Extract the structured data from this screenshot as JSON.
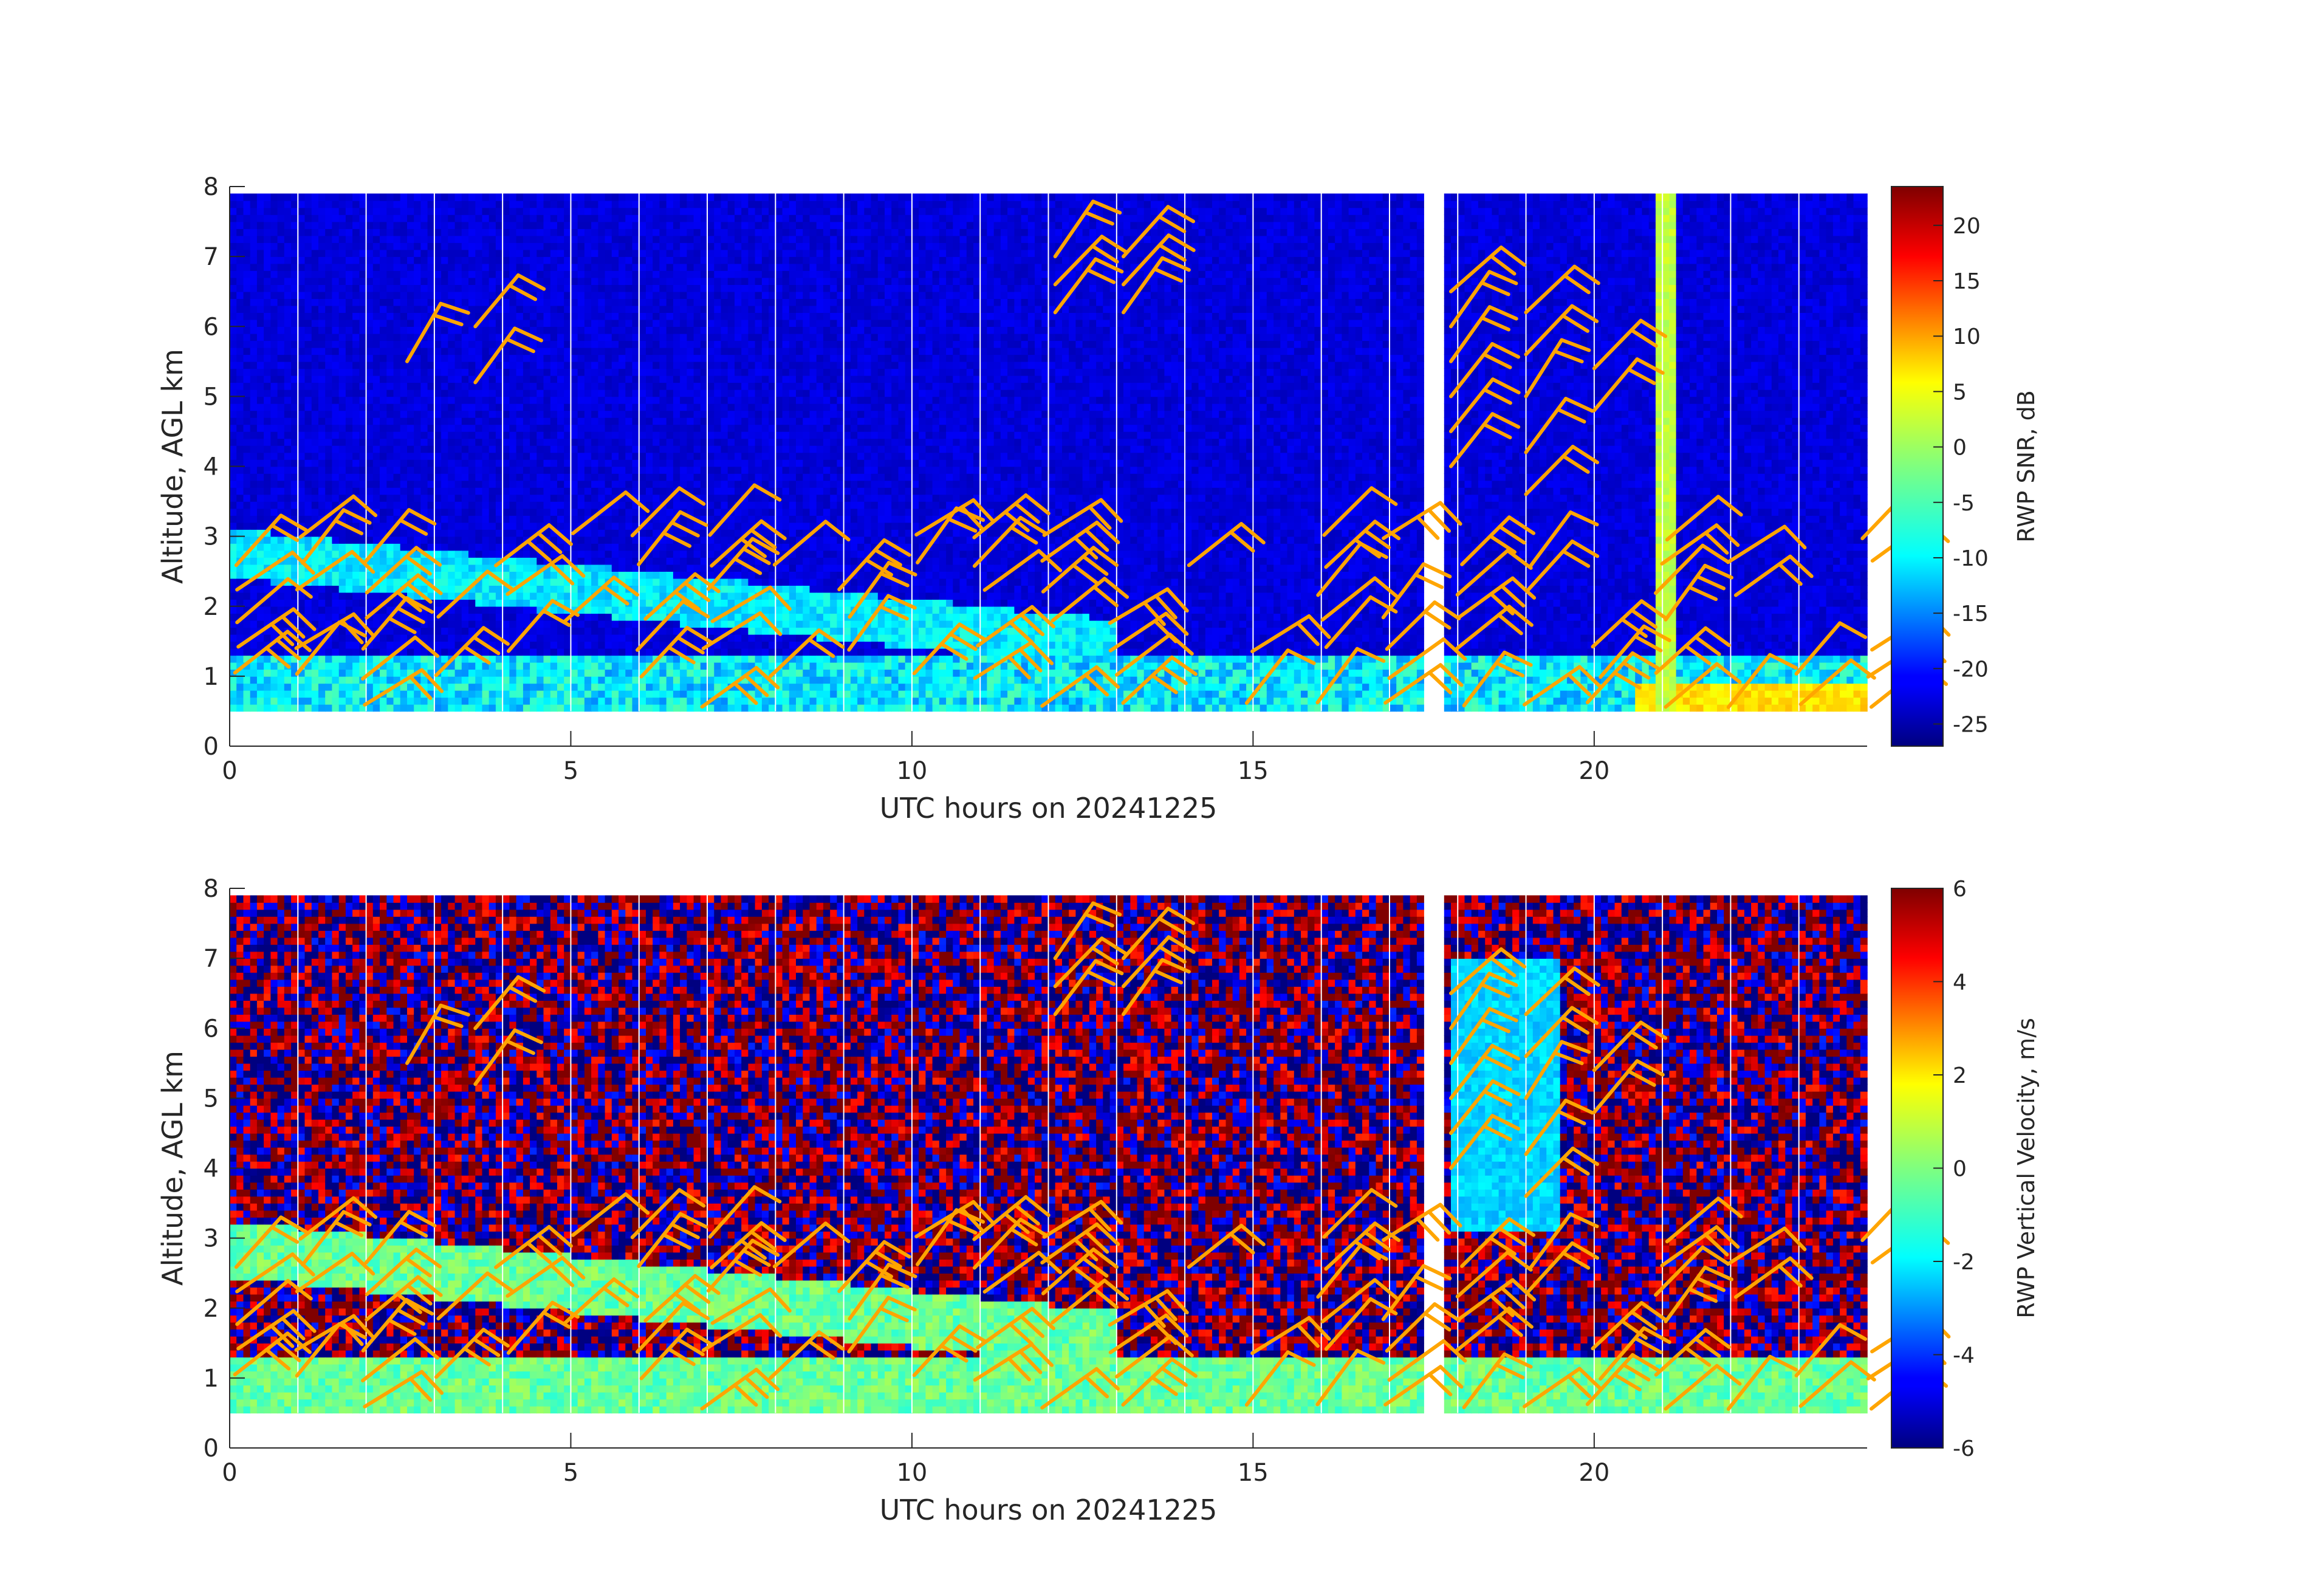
{
  "chart_data": [
    {
      "type": "heatmap",
      "variable": "snr",
      "xlabel": "UTC hours on 20241225",
      "ylabel": "Altitude, AGL km",
      "colorbar_label": "RWP SNR, dB",
      "xlim": [
        0,
        24
      ],
      "ylim": [
        0,
        8
      ],
      "xticks": [
        0,
        5,
        10,
        15,
        20
      ],
      "yticks": [
        0,
        1,
        2,
        3,
        4,
        5,
        6,
        7,
        8
      ],
      "clim": [
        -27,
        23.5
      ],
      "cticks": [
        20,
        15,
        10,
        5,
        0,
        -5,
        -10,
        -15,
        -20,
        -25
      ],
      "colormap": "jet",
      "data_range_km": [
        0.5,
        7.9
      ],
      "data_gaps_hours": [
        [
          17.5,
          17.8
        ]
      ],
      "wind_barbs": true,
      "barb_color": "#ffa500"
    },
    {
      "type": "heatmap",
      "variable": "vertical_velocity",
      "xlabel": "UTC hours on 20241225",
      "ylabel": "Altitude, AGL km",
      "colorbar_label": "RWP Vertical Velocity, m/s",
      "xlim": [
        0,
        24
      ],
      "ylim": [
        0,
        8
      ],
      "xticks": [
        0,
        5,
        10,
        15,
        20
      ],
      "yticks": [
        0,
        1,
        2,
        3,
        4,
        5,
        6,
        7,
        8
      ],
      "clim": [
        -6,
        6
      ],
      "cticks": [
        6,
        4,
        2,
        0,
        -2,
        -4,
        -6
      ],
      "colormap": "jet",
      "data_range_km": [
        0.5,
        7.9
      ],
      "data_gaps_hours": [
        [
          17.5,
          17.8
        ]
      ],
      "wind_barbs": true,
      "barb_color": "#ffa500"
    }
  ]
}
